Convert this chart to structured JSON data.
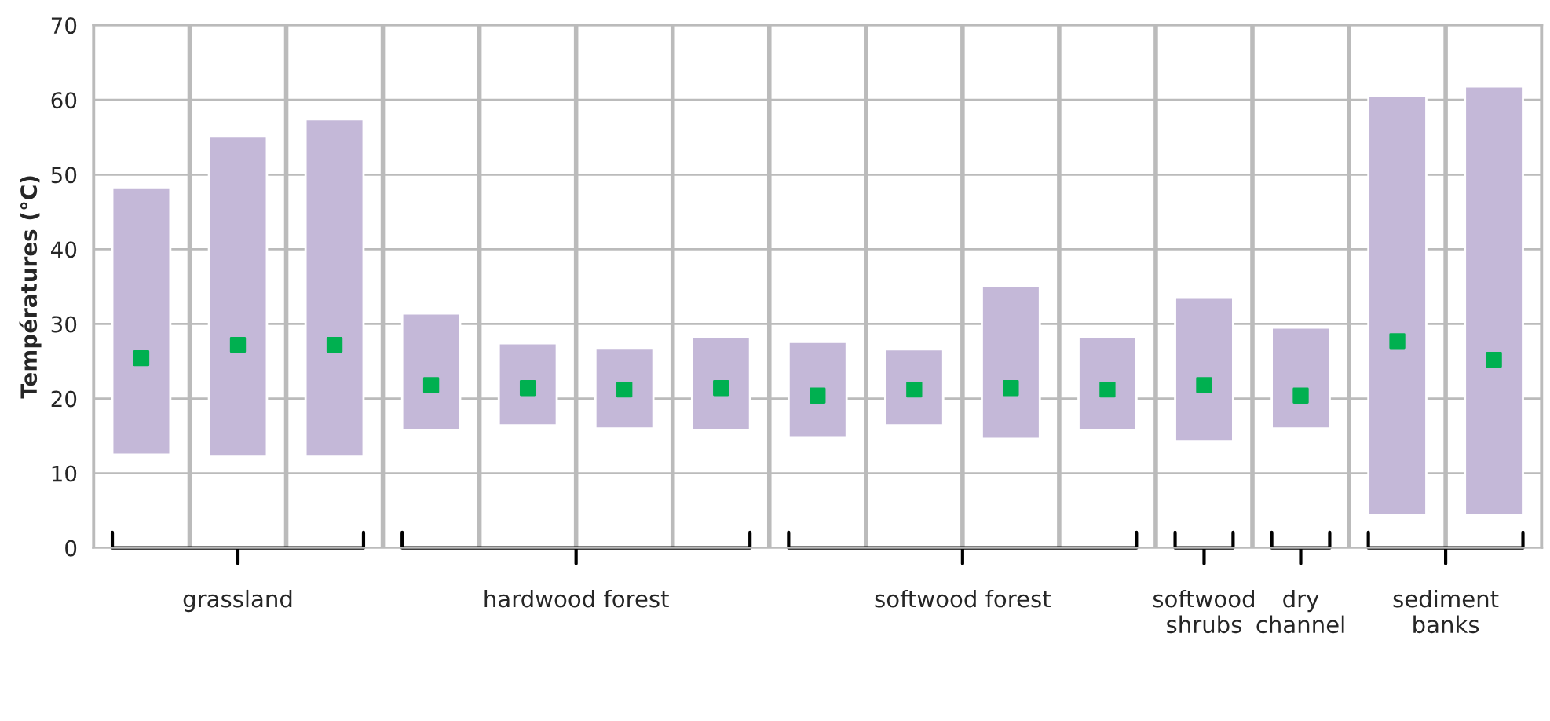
{
  "chart_data": {
    "type": "bar",
    "ylabel": "Températures (°C)",
    "categories": [
      null,
      null,
      null,
      null,
      null,
      null,
      null,
      null,
      null,
      null,
      null,
      null,
      null,
      null,
      null
    ],
    "series": [
      {
        "type": "bar",
        "color": "#c4b8d8",
        "base": [
          12.5,
          12.3,
          12.3,
          15.8,
          16.4,
          16.0,
          15.8,
          14.8,
          16.4,
          14.6,
          15.8,
          14.3,
          16.0,
          4.4,
          4.4
        ],
        "values": [
          35.7,
          42.8,
          45.1,
          15.6,
          11.0,
          10.8,
          12.5,
          12.8,
          10.2,
          20.5,
          12.5,
          19.2,
          13.5,
          56.1,
          57.4
        ]
      },
      {
        "type": "scatter",
        "color": "#00b050",
        "marker": "square",
        "values": [
          25.4,
          27.2,
          27.2,
          21.8,
          21.4,
          21.2,
          21.4,
          20.4,
          21.2,
          21.4,
          21.2,
          21.8,
          20.4,
          27.7,
          25.2
        ]
      }
    ],
    "ylim": [
      0,
      70
    ],
    "yticks": [
      0,
      10,
      20,
      30,
      40,
      50,
      60,
      70
    ],
    "grid": true,
    "legend": false,
    "annotations": [
      "grassland",
      "hardwood forest",
      "softwood forest",
      "softwood\nshrubs",
      "dry\nchannel",
      "sediment\nbanks"
    ]
  }
}
